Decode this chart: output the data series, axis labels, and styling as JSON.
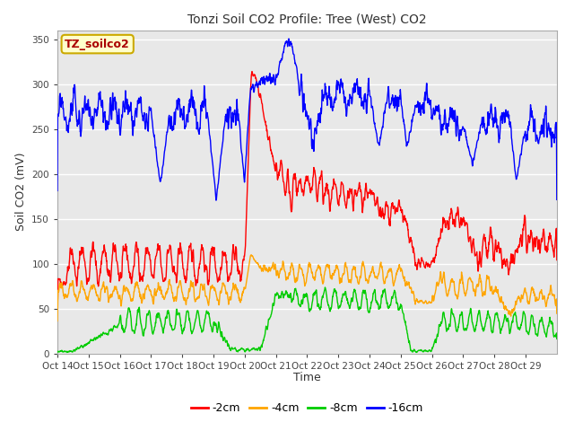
{
  "title": "Tonzi Soil CO2 Profile: Tree (West) CO2",
  "ylabel": "Soil CO2 (mV)",
  "xlabel": "Time",
  "legend_label": "TZ_soilco2",
  "series_labels": [
    "-2cm",
    "-4cm",
    "-8cm",
    "-16cm"
  ],
  "series_colors": [
    "#ff0000",
    "#ffa500",
    "#00cc00",
    "#0000ff"
  ],
  "ylim": [
    0,
    360
  ],
  "yticks": [
    0,
    50,
    100,
    150,
    200,
    250,
    300,
    350
  ],
  "xtick_labels": [
    "Oct 14",
    "Oct 15",
    "Oct 16",
    "Oct 17",
    "Oct 18",
    "Oct 19",
    "Oct 20",
    "Oct 21",
    "Oct 22",
    "Oct 23",
    "Oct 24",
    "Oct 25",
    "Oct 26",
    "Oct 27",
    "Oct 28",
    "Oct 29"
  ],
  "bg_color": "#ffffff",
  "plot_bg_color": "#e8e8e8",
  "grid_color": "#ffffff",
  "legend_box_color": "#ffffcc",
  "legend_box_edge": "#ccaa00"
}
